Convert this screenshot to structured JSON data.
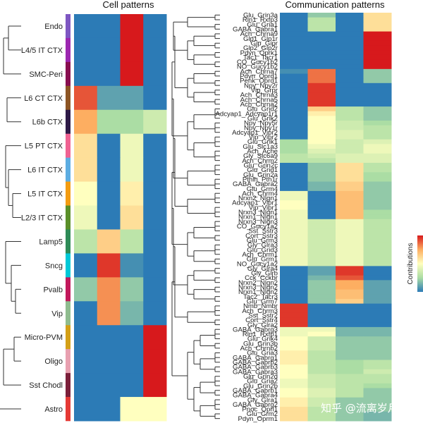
{
  "chart_data": [
    {
      "type": "heatmap",
      "title": "Cell patterns",
      "rows": [
        "Endo",
        "L4/5 IT CTX",
        "SMC-Peri",
        "L6 CT CTX",
        "L6b CTX",
        "L5 PT CTX",
        "L6 IT CTX",
        "L5 IT CTX",
        "L2/3 IT CTX",
        "Lamp5",
        "Sncg",
        "Pvalb",
        "Vip",
        "Micro-PVM",
        "Oligo",
        "Sst Chodl",
        "Astro"
      ],
      "row_colors": [
        "#7e57c2",
        "#9c27b0",
        "#880e4f",
        "#8d5524",
        "#2e1a47",
        "#f06292",
        "#5dade2",
        "#f39c12",
        "#5a8f29",
        "#2e8b57",
        "#00c8d7",
        "#c2185b",
        "#8fbc8f",
        "#d4a017",
        "#e8a0b0",
        "#7b1f3a",
        "#e53935"
      ],
      "columns": 4,
      "values": [
        [
          0.0,
          0.0,
          1.0,
          0.0
        ],
        [
          0.0,
          0.0,
          1.0,
          0.0
        ],
        [
          0.0,
          0.0,
          1.0,
          0.0
        ],
        [
          0.9,
          0.1,
          0.1,
          0.0
        ],
        [
          0.75,
          0.25,
          0.25,
          0.35
        ],
        [
          0.6,
          0.0,
          0.45,
          0.0
        ],
        [
          0.6,
          0.0,
          0.45,
          0.0
        ],
        [
          0.5,
          0.0,
          0.55,
          0.0
        ],
        [
          0.45,
          0.0,
          0.6,
          0.0
        ],
        [
          0.3,
          0.65,
          0.3,
          0.0
        ],
        [
          0.0,
          0.95,
          0.05,
          0.0
        ],
        [
          0.2,
          0.8,
          0.2,
          0.0
        ],
        [
          0.0,
          0.8,
          0.15,
          0.0
        ],
        [
          0.0,
          0.0,
          0.0,
          1.0
        ],
        [
          0.0,
          0.0,
          0.0,
          1.0
        ],
        [
          0.0,
          0.0,
          0.0,
          1.0
        ],
        [
          0.0,
          0.0,
          0.5,
          0.5
        ]
      ]
    },
    {
      "type": "heatmap",
      "title": "Communication patterns",
      "rows": [
        "Glu_Grin3a",
        "Rln1_Rxfp3",
        "Glu_Gria1",
        "GABA_Gabra1",
        "Ach_Chrna9",
        "Glp1_Glp1r",
        "Gip_Gipr",
        "Glp2_Glp2r",
        "Pdyn_Oprk1",
        "Tac1_Tacr1",
        "CO_Gucy1b2",
        "NO_Gucy1b2",
        "Ach_Chrna7",
        "Pdyn_Oprd1",
        "Penk_Oprd1",
        "Npy_Npy2r",
        "Vip_Grpr",
        "Ach_Chrna3",
        "Ach_Chrna5",
        "Ach_Chrna2",
        "Glu_Grid2",
        "Adcyap1_Adcyap1r1",
        "Glu_Grik2",
        "Npy_Npy5r",
        "Npy_Npy1r",
        "Adcyap1_Vipr2",
        "Vip_Vipr2",
        "Glu_Grik1",
        "Glu_Slc1a3",
        "Ach_Ache",
        "Gly_Slc6a9",
        "Ach_Chrm2",
        "Glu_Grin2c",
        "Glu_Grid1",
        "Glu_Grin2a",
        "Pthlh_Pth1r",
        "GABA_Gabra2",
        "Glu_Grm4",
        "Ach_Chrm4",
        "Nrxn2_Nlgn1",
        "Adcyap1_Vipr1",
        "Vip_Vipr1",
        "Nrxn3_Nlgn1",
        "Nrxn1_Nlgn1",
        "Nrxn3_Nlgn3",
        "CO_Gucy1a2",
        "Sst_Sstr3",
        "Cort_Sstr3",
        "Glu_Grm3",
        "Gly_Glra3",
        "Glu_Grid3",
        "Ach_Chrm1",
        "Glu_Grm1",
        "NO_Gucy1a2",
        "Gly_Glra4",
        "Gly_Glrb",
        "Cck_Cckbr",
        "Nrxn2_Nlgn2",
        "Nrxn3_Nlgn2",
        "Nrxn1_Nlgn2",
        "Tac2_Tacr3",
        "Glu_Grm7",
        "Nmb_Nmbr",
        "Ach_Chrm3",
        "Sst_Sstr2",
        "Cort_Sstr4",
        "Gly_Glra2",
        "GABA_Gabrg3",
        "Rln1_Rxfp1",
        "Glu_Grik4",
        "Glu_Grin3b",
        "Ach_Chrnb2",
        "Glu_Gria3",
        "GABA_Gabrg1",
        "GABA_Gabrb2",
        "GABA_Gabrb3",
        "GABA_Gabra3",
        "Glu_Grin2d",
        "Glu_Gria2",
        "Glu_Grin2b",
        "GABA_Gabrb1",
        "GABA_Gabra4",
        "Gly_Glra1",
        "GABA_Gabrg2",
        "Pnoc_Oprl1",
        "Glu_Grm2",
        "Pdyn_Oprm1"
      ],
      "columns": 4,
      "values": [
        [
          0.0,
          0.2,
          0.0,
          0.6
        ],
        [
          0.0,
          0.3,
          0.0,
          0.6
        ],
        [
          0.0,
          0.3,
          0.0,
          0.6
        ],
        [
          0.0,
          0.3,
          0.0,
          0.6
        ],
        [
          0.0,
          0.0,
          0.0,
          1.0
        ],
        [
          0.0,
          0.0,
          0.0,
          1.0
        ],
        [
          0.0,
          0.0,
          0.0,
          1.0
        ],
        [
          0.0,
          0.0,
          0.0,
          1.0
        ],
        [
          0.0,
          0.0,
          0.0,
          1.0
        ],
        [
          0.0,
          0.0,
          0.0,
          1.0
        ],
        [
          0.0,
          0.0,
          0.0,
          1.0
        ],
        [
          0.0,
          0.0,
          0.0,
          1.0
        ],
        [
          0.05,
          0.85,
          0.0,
          0.2
        ],
        [
          0.0,
          0.85,
          0.0,
          0.2
        ],
        [
          0.0,
          0.85,
          0.0,
          0.2
        ],
        [
          0.0,
          0.95,
          0.0,
          0.0
        ],
        [
          0.0,
          0.95,
          0.0,
          0.0
        ],
        [
          0.0,
          0.95,
          0.0,
          0.0
        ],
        [
          0.0,
          0.95,
          0.0,
          0.0
        ],
        [
          0.0,
          0.95,
          0.0,
          0.0
        ],
        [
          0.0,
          0.65,
          0.3,
          0.2
        ],
        [
          0.0,
          0.55,
          0.3,
          0.2
        ],
        [
          0.0,
          0.5,
          0.3,
          0.2
        ],
        [
          0.0,
          0.5,
          0.35,
          0.25
        ],
        [
          0.0,
          0.5,
          0.35,
          0.3
        ],
        [
          0.0,
          0.5,
          0.4,
          0.3
        ],
        [
          0.0,
          0.5,
          0.4,
          0.3
        ],
        [
          0.25,
          0.5,
          0.35,
          0.4
        ],
        [
          0.25,
          0.45,
          0.35,
          0.45
        ],
        [
          0.25,
          0.4,
          0.35,
          0.45
        ],
        [
          0.3,
          0.35,
          0.4,
          0.4
        ],
        [
          0.3,
          0.3,
          0.4,
          0.4
        ],
        [
          0.0,
          0.2,
          0.6,
          0.3
        ],
        [
          0.0,
          0.2,
          0.6,
          0.3
        ],
        [
          0.0,
          0.2,
          0.6,
          0.25
        ],
        [
          0.0,
          0.2,
          0.6,
          0.25
        ],
        [
          0.0,
          0.15,
          0.65,
          0.2
        ],
        [
          0.0,
          0.15,
          0.65,
          0.2
        ],
        [
          0.45,
          0.0,
          0.7,
          0.2
        ],
        [
          0.45,
          0.0,
          0.7,
          0.2
        ],
        [
          0.5,
          0.0,
          0.7,
          0.2
        ],
        [
          0.5,
          0.0,
          0.7,
          0.2
        ],
        [
          0.45,
          0.0,
          0.7,
          0.25
        ],
        [
          0.45,
          0.0,
          0.7,
          0.25
        ],
        [
          0.45,
          0.35,
          0.45,
          0.3
        ],
        [
          0.45,
          0.35,
          0.45,
          0.3
        ],
        [
          0.45,
          0.35,
          0.45,
          0.3
        ],
        [
          0.45,
          0.35,
          0.45,
          0.3
        ],
        [
          0.45,
          0.35,
          0.45,
          0.3
        ],
        [
          0.45,
          0.35,
          0.45,
          0.3
        ],
        [
          0.45,
          0.35,
          0.45,
          0.3
        ],
        [
          0.45,
          0.35,
          0.45,
          0.3
        ],
        [
          0.45,
          0.35,
          0.45,
          0.3
        ],
        [
          0.45,
          0.35,
          0.45,
          0.3
        ],
        [
          0.0,
          0.1,
          0.95,
          0.0
        ],
        [
          0.0,
          0.1,
          0.95,
          0.0
        ],
        [
          0.0,
          0.15,
          0.9,
          0.0
        ],
        [
          0.0,
          0.2,
          0.75,
          0.1
        ],
        [
          0.0,
          0.2,
          0.75,
          0.1
        ],
        [
          0.0,
          0.2,
          0.7,
          0.1
        ],
        [
          0.0,
          0.2,
          0.7,
          0.1
        ],
        [
          0.0,
          0.2,
          0.65,
          0.1
        ],
        [
          0.95,
          0.0,
          0.0,
          0.0
        ],
        [
          0.95,
          0.0,
          0.0,
          0.0
        ],
        [
          0.95,
          0.0,
          0.0,
          0.0
        ],
        [
          0.95,
          0.0,
          0.0,
          0.0
        ],
        [
          0.95,
          0.0,
          0.0,
          0.0
        ],
        [
          0.45,
          0.45,
          0.15,
          0.15
        ],
        [
          0.45,
          0.5,
          0.15,
          0.15
        ],
        [
          0.5,
          0.35,
          0.2,
          0.2
        ],
        [
          0.5,
          0.35,
          0.2,
          0.2
        ],
        [
          0.5,
          0.35,
          0.2,
          0.2
        ],
        [
          0.55,
          0.3,
          0.2,
          0.2
        ],
        [
          0.55,
          0.3,
          0.2,
          0.2
        ],
        [
          0.55,
          0.3,
          0.25,
          0.3
        ],
        [
          0.5,
          0.3,
          0.25,
          0.3
        ],
        [
          0.5,
          0.3,
          0.25,
          0.35
        ],
        [
          0.5,
          0.35,
          0.3,
          0.3
        ],
        [
          0.45,
          0.35,
          0.3,
          0.3
        ],
        [
          0.45,
          0.35,
          0.3,
          0.25
        ],
        [
          0.5,
          0.4,
          0.3,
          0.2
        ],
        [
          0.5,
          0.4,
          0.3,
          0.2
        ],
        [
          0.55,
          0.35,
          0.2,
          0.2
        ],
        [
          0.55,
          0.35,
          0.2,
          0.2
        ],
        [
          0.6,
          0.3,
          0.2,
          0.2
        ],
        [
          0.6,
          0.3,
          0.2,
          0.15
        ],
        [
          0.6,
          0.3,
          0.2,
          0.15
        ]
      ]
    }
  ],
  "legend": {
    "label": "Contributions",
    "min": 0,
    "max": 1
  },
  "watermark": "知乎 @流离岁月"
}
